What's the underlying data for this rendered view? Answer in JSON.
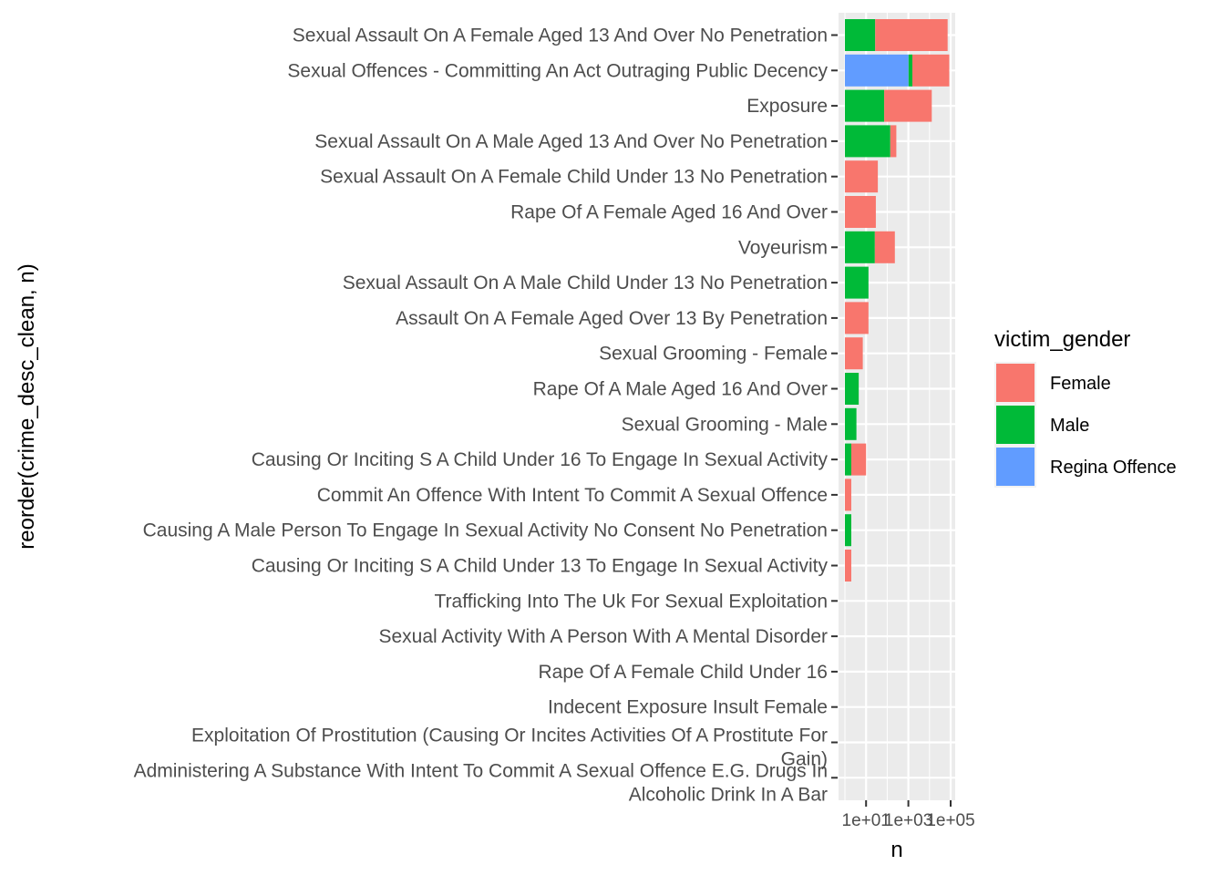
{
  "chart_data": {
    "type": "bar",
    "orientation": "horizontal",
    "stacked": true,
    "x_scale": "log10",
    "xlabel": "n",
    "ylabel": "reorder(crime_desc_clean, n)",
    "x_ticks": [
      {
        "value": 10,
        "label": "1e+01"
      },
      {
        "value": 1000,
        "label": "1e+03"
      },
      {
        "value": 100000,
        "label": "1e+05"
      }
    ],
    "legend": {
      "title": "victim_gender",
      "placement": "right",
      "entries": [
        {
          "name": "Female",
          "color": "#F8766D"
        },
        {
          "name": "Male",
          "color": "#00BA38"
        },
        {
          "name": "Regina Offence",
          "color": "#619CFF"
        }
      ]
    },
    "categories": [
      {
        "label": "Sexual Assault On A Female Aged 13 And Over No Penetration",
        "segments": [
          {
            "group": "Male",
            "start": 1,
            "end": 27
          },
          {
            "group": "Female",
            "start": 27,
            "end": 72000
          }
        ]
      },
      {
        "label": "Sexual Offences - Committing An Act Outraging Public Decency",
        "segments": [
          {
            "group": "Regina Offence",
            "start": 1,
            "end": 1020
          },
          {
            "group": "Male",
            "start": 1020,
            "end": 1550
          },
          {
            "group": "Female",
            "start": 1550,
            "end": 86000
          }
        ]
      },
      {
        "label": "Exposure",
        "segments": [
          {
            "group": "Male",
            "start": 1,
            "end": 72
          },
          {
            "group": "Female",
            "start": 72,
            "end": 12800
          }
        ]
      },
      {
        "label": "Sexual Assault On A Male Aged 13 And Over No Penetration",
        "segments": [
          {
            "group": "Male",
            "start": 1,
            "end": 140
          },
          {
            "group": "Female",
            "start": 140,
            "end": 270
          }
        ]
      },
      {
        "label": "Sexual Assault On A Female Child Under 13 No Penetration",
        "segments": [
          {
            "group": "Female",
            "start": 1,
            "end": 36
          }
        ]
      },
      {
        "label": "Rape Of A Female Aged 16 And Over",
        "segments": [
          {
            "group": "Female",
            "start": 1,
            "end": 29
          }
        ]
      },
      {
        "label": "Voyeurism",
        "segments": [
          {
            "group": "Male",
            "start": 1,
            "end": 26
          },
          {
            "group": "Female",
            "start": 26,
            "end": 230
          }
        ]
      },
      {
        "label": "Sexual Assault On A Male Child Under 13 No Penetration",
        "segments": [
          {
            "group": "Male",
            "start": 1,
            "end": 13
          }
        ]
      },
      {
        "label": "Assault On A Female Aged Over 13 By Penetration",
        "segments": [
          {
            "group": "Female",
            "start": 1,
            "end": 13
          }
        ]
      },
      {
        "label": "Sexual Grooming - Female",
        "segments": [
          {
            "group": "Female",
            "start": 1,
            "end": 7
          }
        ]
      },
      {
        "label": "Rape Of A Male Aged 16 And Over",
        "segments": [
          {
            "group": "Male",
            "start": 1,
            "end": 4.5
          }
        ]
      },
      {
        "label": "Sexual Grooming - Male",
        "segments": [
          {
            "group": "Male",
            "start": 1,
            "end": 3.5
          }
        ]
      },
      {
        "label": "Causing Or Inciting S A Child Under 16 To Engage In Sexual Activity",
        "segments": [
          {
            "group": "Male",
            "start": 1,
            "end": 2
          },
          {
            "group": "Female",
            "start": 2,
            "end": 10
          }
        ]
      },
      {
        "label": "Commit An Offence With Intent To Commit A Sexual Offence",
        "segments": [
          {
            "group": "Female",
            "start": 1,
            "end": 2
          }
        ]
      },
      {
        "label": "Causing A Male Person To Engage In Sexual Activity No Consent No Penetration",
        "segments": [
          {
            "group": "Male",
            "start": 1,
            "end": 2
          }
        ]
      },
      {
        "label": "Causing Or Inciting S A Child Under 13 To Engage In Sexual Activity",
        "segments": [
          {
            "group": "Female",
            "start": 1,
            "end": 2
          }
        ]
      },
      {
        "label": "Trafficking Into The Uk For Sexual Exploitation",
        "segments": []
      },
      {
        "label": "Sexual Activity With A Person With A Mental Disorder",
        "segments": []
      },
      {
        "label": "Rape Of A Female Child Under 16",
        "segments": []
      },
      {
        "label": "Indecent Exposure Insult Female",
        "segments": []
      },
      {
        "label": [
          "Exploitation Of Prostitution (Causing Or Incites Activities Of A Prostitute For",
          "Gain)"
        ],
        "segments": []
      },
      {
        "label": [
          "Administering A Substance With Intent To Commit A Sexual Offence E.G. Drugs In",
          "Alcoholic Drink In A Bar"
        ],
        "segments": []
      }
    ]
  }
}
